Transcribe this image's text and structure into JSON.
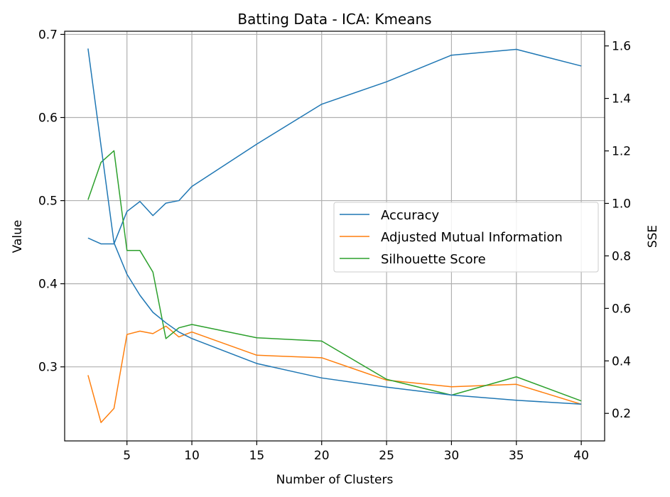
{
  "chart_data": {
    "type": "line",
    "title": "Batting Data - ICA: Kmeans",
    "xlabel": "Number of Clusters",
    "ylabel": "Value",
    "y2label": "SSE",
    "xlim": [
      0.2,
      41.8
    ],
    "ylim": [
      0.2109,
      0.7038
    ],
    "y2lim": [
      0.0951,
      1.6559
    ],
    "xticks": [
      5,
      10,
      15,
      20,
      25,
      30,
      35,
      40
    ],
    "yticks": [
      0.3,
      0.4,
      0.5,
      0.6,
      0.7
    ],
    "y2ticks": [
      0.2,
      0.4,
      0.6,
      0.8,
      1.0,
      1.2,
      1.4,
      1.6
    ],
    "grid": true,
    "legend_position": "center-right",
    "x": [
      2,
      3,
      4,
      5,
      6,
      7,
      8,
      9,
      10,
      15,
      20,
      25,
      30,
      35,
      40
    ],
    "series": [
      {
        "name": "Accuracy",
        "color": "#1f77b4",
        "axis": "left",
        "values": [
          0.455,
          0.448,
          0.448,
          0.487,
          0.499,
          0.482,
          0.497,
          0.5,
          0.517,
          0.568,
          0.616,
          0.643,
          0.675,
          0.682,
          0.662
        ]
      },
      {
        "name": "Adjusted Mutual Information",
        "color": "#ff7f0e",
        "axis": "left",
        "values": [
          0.29,
          0.233,
          0.25,
          0.339,
          0.343,
          0.34,
          0.349,
          0.336,
          0.342,
          0.314,
          0.311,
          0.284,
          0.276,
          0.279,
          0.255
        ]
      },
      {
        "name": "Silhouette Score",
        "color": "#2ca02c",
        "axis": "left",
        "values": [
          0.501,
          0.546,
          0.56,
          0.44,
          0.44,
          0.414,
          0.334,
          0.347,
          0.351,
          0.335,
          0.331,
          0.285,
          0.266,
          0.288,
          0.259
        ]
      },
      {
        "name": "SSE",
        "color": "#1f77b4",
        "axis": "right",
        "values": [
          1.59,
          1.22,
          0.85,
          0.73,
          0.65,
          0.585,
          0.545,
          0.51,
          0.485,
          0.39,
          0.335,
          0.3,
          0.27,
          0.25,
          0.235
        ]
      }
    ]
  }
}
